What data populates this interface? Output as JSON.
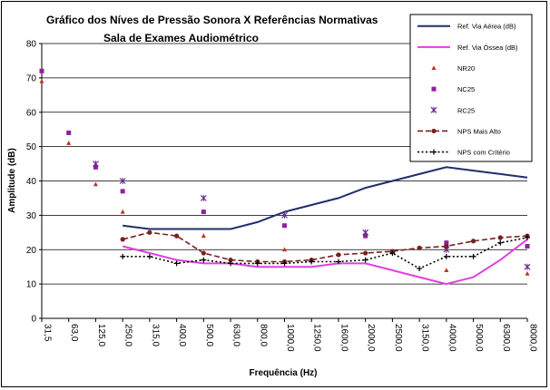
{
  "chart_data": {
    "type": "line",
    "title": "Gráfico dos Níves de Pressão Sonora X Referências Normativas",
    "subtitle": "Sala de Exames Audiométrico",
    "xlabel": "Frequência (Hz)",
    "ylabel": "Amplitude (dB)",
    "ylim": [
      0,
      80
    ],
    "yticks": [
      0,
      10,
      20,
      30,
      40,
      50,
      60,
      70,
      80
    ],
    "grid": "horizontal",
    "legend_position": "top-right",
    "categories": [
      "31,5",
      "63,0",
      "125,0",
      "250,0",
      "315,0",
      "400,0",
      "500,0",
      "630,0",
      "800,0",
      "1000,0",
      "1250,0",
      "1600,0",
      "2000,0",
      "2500,0",
      "3150,0",
      "4000,0",
      "5000,0",
      "6300,0",
      "8000,0"
    ],
    "series": [
      {
        "name": "Ref. Via Aérea (dB)",
        "style": "line",
        "color": "#1f2f6b",
        "values": [
          null,
          null,
          null,
          27,
          26,
          26,
          26,
          26,
          28,
          31,
          33,
          35,
          38,
          40,
          42,
          44,
          43,
          42,
          41
        ]
      },
      {
        "name": "Ref. Via Óssea (dB)",
        "style": "line",
        "color": "#e040e0",
        "values": [
          null,
          null,
          null,
          21,
          19,
          17,
          16,
          16,
          15,
          15,
          15,
          16,
          16,
          14,
          12,
          10,
          12,
          17,
          23
        ]
      },
      {
        "name": "NR20",
        "style": "triangle",
        "color": "#c03020",
        "values": [
          69,
          51,
          39,
          31,
          null,
          null,
          24,
          null,
          null,
          20,
          null,
          null,
          24,
          null,
          null,
          14,
          null,
          null,
          13
        ]
      },
      {
        "name": "NC25",
        "style": "square",
        "color": "#9020a0",
        "values": [
          72,
          54,
          44,
          37,
          null,
          null,
          31,
          null,
          null,
          27,
          null,
          null,
          24,
          null,
          null,
          22,
          null,
          null,
          21
        ]
      },
      {
        "name": "RC25",
        "style": "star",
        "color": "#6a2a90",
        "values": [
          null,
          null,
          45,
          40,
          null,
          null,
          35,
          null,
          null,
          30,
          null,
          null,
          25,
          null,
          null,
          20,
          null,
          null,
          15
        ]
      },
      {
        "name": "NPS Mais Alto",
        "style": "dashed-circle",
        "color": "#7a2020",
        "values": [
          null,
          null,
          null,
          23,
          25,
          24,
          19,
          17,
          16.5,
          16.5,
          17,
          18.5,
          19,
          19.5,
          20.5,
          21,
          22.5,
          23.5,
          24
        ]
      },
      {
        "name": "NPS com Critério",
        "style": "dotted-plus",
        "color": "#000000",
        "values": [
          null,
          null,
          null,
          18,
          18,
          16,
          17,
          16,
          16,
          16,
          16.5,
          16.5,
          17,
          19,
          14.5,
          18,
          18,
          22,
          23.5
        ]
      }
    ]
  }
}
